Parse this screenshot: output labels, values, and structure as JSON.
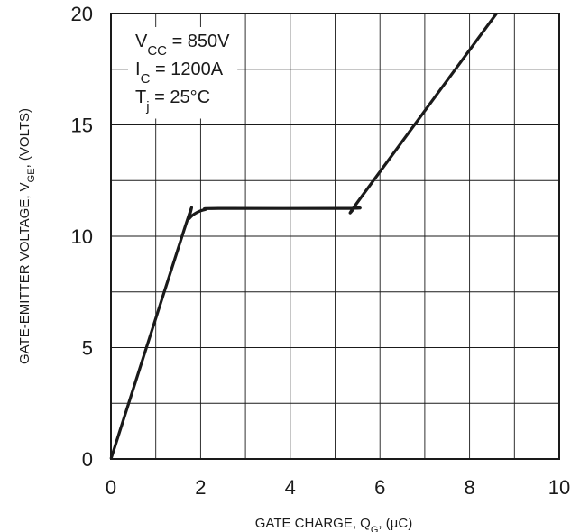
{
  "chart_data": {
    "type": "line",
    "title": "",
    "xlabel": {
      "main": "GATE CHARGE, Q",
      "sub": "G",
      "rest": ", (µC)"
    },
    "ylabel": {
      "main": "GATE-EMITTER VOLTAGE, V",
      "sub": "GE",
      "rest": ", (VOLTS)"
    },
    "xlim": [
      0,
      10
    ],
    "ylim": [
      0,
      20
    ],
    "x_ticks": [
      "0",
      "2",
      "4",
      "6",
      "8",
      "10"
    ],
    "y_ticks": [
      "0",
      "5",
      "10",
      "15",
      "20"
    ],
    "grid": true,
    "grid_x_step": 1,
    "grid_y_step": 2.5,
    "conditions": [
      {
        "main": "V",
        "sub": "CC",
        "rest": " = 850V"
      },
      {
        "main": "I",
        "sub": "C",
        "rest": " = 1200A"
      },
      {
        "main": "T",
        "sub": "j",
        "rest": " = 25°C"
      }
    ],
    "series": [
      {
        "color": "#1a1a1a",
        "x": [
          0,
          1.65,
          1.75,
          1.9,
          2.1,
          2.4,
          5.3,
          5.45,
          5.6,
          8.6
        ],
        "y": [
          0,
          10.4,
          10.8,
          11.05,
          11.2,
          11.25,
          11.25,
          11.35,
          11.8,
          20
        ]
      }
    ]
  }
}
